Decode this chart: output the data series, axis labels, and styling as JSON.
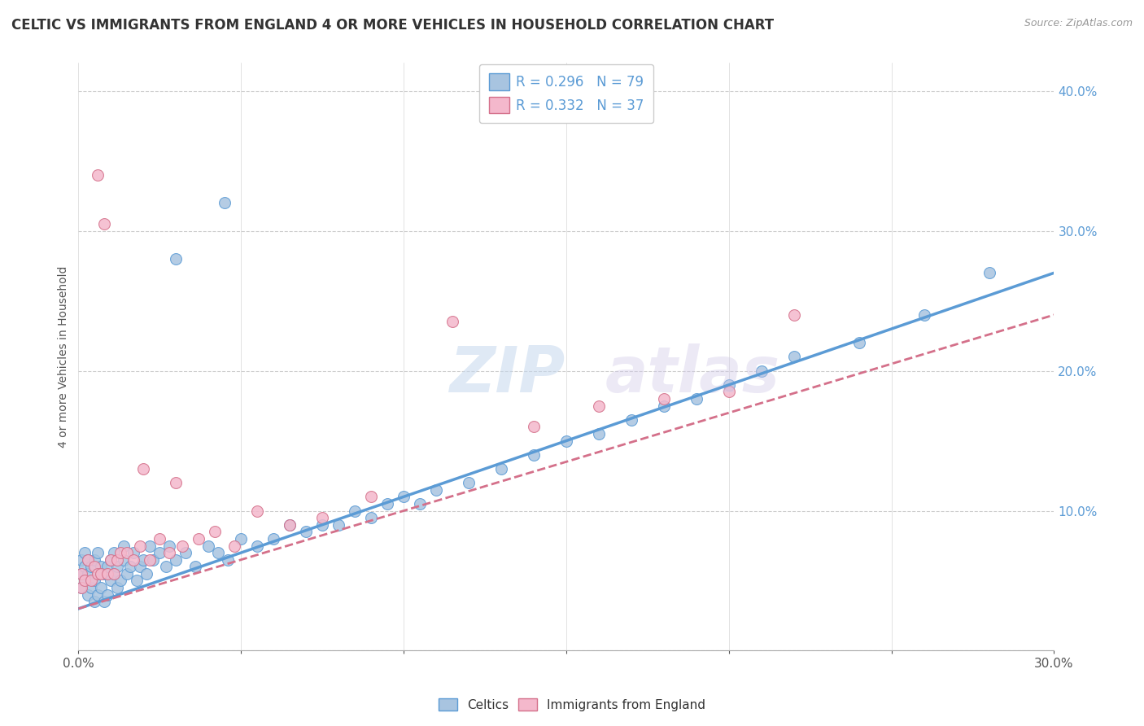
{
  "title": "CELTIC VS IMMIGRANTS FROM ENGLAND 4 OR MORE VEHICLES IN HOUSEHOLD CORRELATION CHART",
  "source": "Source: ZipAtlas.com",
  "ylabel": "4 or more Vehicles in Household",
  "R_celtics": 0.296,
  "N_celtics": 79,
  "R_immigrants": 0.332,
  "N_immigrants": 37,
  "celtics_color": "#a8c4e0",
  "celtics_edge_color": "#5b9bd5",
  "immigrants_color": "#f4b8cc",
  "immigrants_edge_color": "#d4708a",
  "celtics_line_color": "#5b9bd5",
  "immigrants_line_color": "#d4708a",
  "xlim": [
    0.0,
    0.3
  ],
  "ylim": [
    0.0,
    0.42
  ],
  "celtics_x": [
    0.001,
    0.001,
    0.001,
    0.002,
    0.002,
    0.002,
    0.003,
    0.003,
    0.003,
    0.004,
    0.004,
    0.005,
    0.005,
    0.005,
    0.006,
    0.006,
    0.006,
    0.007,
    0.007,
    0.008,
    0.008,
    0.009,
    0.009,
    0.01,
    0.01,
    0.011,
    0.011,
    0.012,
    0.012,
    0.013,
    0.014,
    0.014,
    0.015,
    0.016,
    0.017,
    0.018,
    0.019,
    0.02,
    0.021,
    0.022,
    0.023,
    0.025,
    0.027,
    0.028,
    0.03,
    0.033,
    0.036,
    0.04,
    0.043,
    0.046,
    0.05,
    0.055,
    0.06,
    0.065,
    0.07,
    0.075,
    0.08,
    0.085,
    0.09,
    0.095,
    0.1,
    0.105,
    0.11,
    0.12,
    0.13,
    0.14,
    0.15,
    0.16,
    0.17,
    0.18,
    0.19,
    0.2,
    0.21,
    0.22,
    0.24,
    0.26,
    0.28,
    0.03,
    0.045
  ],
  "celtics_y": [
    0.045,
    0.055,
    0.065,
    0.05,
    0.06,
    0.07,
    0.04,
    0.055,
    0.065,
    0.045,
    0.06,
    0.035,
    0.05,
    0.065,
    0.04,
    0.055,
    0.07,
    0.045,
    0.06,
    0.035,
    0.055,
    0.04,
    0.06,
    0.05,
    0.065,
    0.055,
    0.07,
    0.045,
    0.06,
    0.05,
    0.065,
    0.075,
    0.055,
    0.06,
    0.07,
    0.05,
    0.06,
    0.065,
    0.055,
    0.075,
    0.065,
    0.07,
    0.06,
    0.075,
    0.065,
    0.07,
    0.06,
    0.075,
    0.07,
    0.065,
    0.08,
    0.075,
    0.08,
    0.09,
    0.085,
    0.09,
    0.09,
    0.1,
    0.095,
    0.105,
    0.11,
    0.105,
    0.115,
    0.12,
    0.13,
    0.14,
    0.15,
    0.155,
    0.165,
    0.175,
    0.18,
    0.19,
    0.2,
    0.21,
    0.22,
    0.24,
    0.27,
    0.28,
    0.32
  ],
  "immigrants_x": [
    0.001,
    0.001,
    0.002,
    0.003,
    0.004,
    0.005,
    0.006,
    0.006,
    0.007,
    0.008,
    0.009,
    0.01,
    0.011,
    0.012,
    0.013,
    0.015,
    0.017,
    0.019,
    0.022,
    0.025,
    0.028,
    0.032,
    0.037,
    0.042,
    0.048,
    0.055,
    0.065,
    0.075,
    0.09,
    0.115,
    0.14,
    0.16,
    0.18,
    0.2,
    0.22,
    0.02,
    0.03
  ],
  "immigrants_y": [
    0.045,
    0.055,
    0.05,
    0.065,
    0.05,
    0.06,
    0.055,
    0.34,
    0.055,
    0.305,
    0.055,
    0.065,
    0.055,
    0.065,
    0.07,
    0.07,
    0.065,
    0.075,
    0.065,
    0.08,
    0.07,
    0.075,
    0.08,
    0.085,
    0.075,
    0.1,
    0.09,
    0.095,
    0.11,
    0.235,
    0.16,
    0.175,
    0.18,
    0.185,
    0.24,
    0.13,
    0.12
  ]
}
